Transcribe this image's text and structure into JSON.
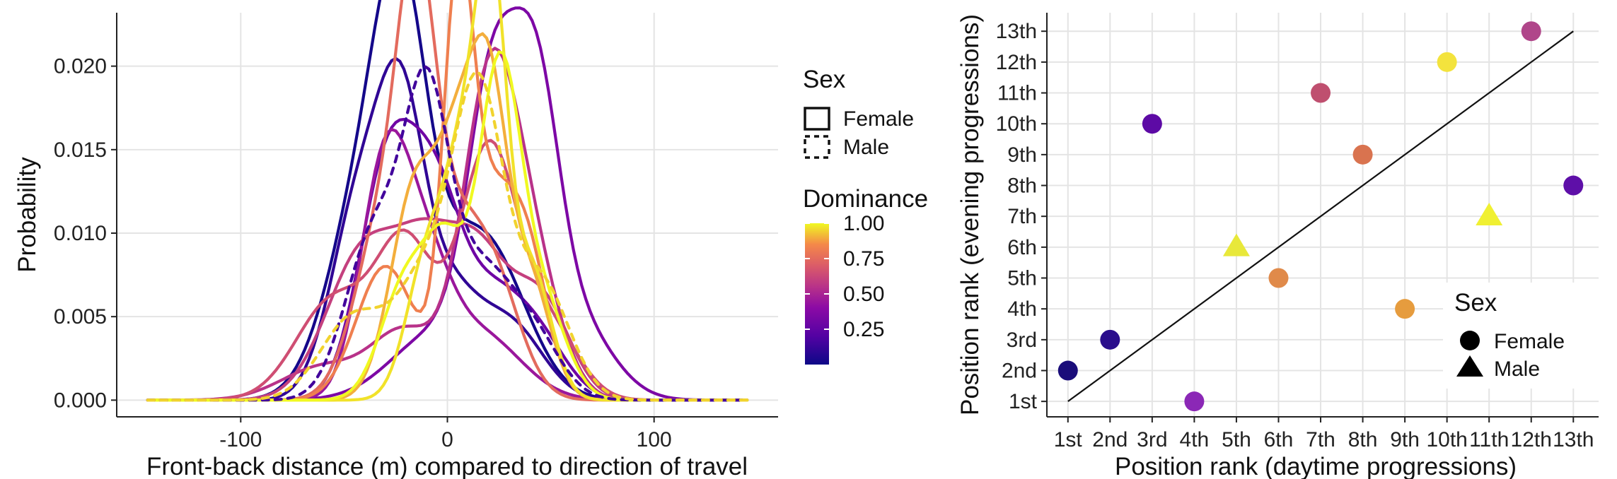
{
  "chart_data": [
    {
      "type": "line",
      "subtype": "density",
      "xlabel": "Front-back distance (m) compared to direction of travel",
      "ylabel": "Probability",
      "xlim": [
        -160,
        160
      ],
      "ylim": [
        -0.001,
        0.0232
      ],
      "x_ticks": [
        -100,
        0,
        100
      ],
      "x_tick_labels": [
        "-100",
        "0",
        "100"
      ],
      "y_ticks": [
        0,
        0.005,
        0.01,
        0.015,
        0.02
      ],
      "y_tick_labels": [
        "0.000",
        "0.005",
        "0.010",
        "0.015",
        "0.020"
      ],
      "grid": true,
      "legend_position": "right",
      "legend": {
        "sex_title": "Sex",
        "sex_entries": [
          "Female",
          "Male"
        ],
        "dominance_title": "Dominance",
        "dominance_ticks": [
          0.25,
          0.5,
          0.75,
          1.0
        ],
        "dominance_labels": [
          "0.25",
          "0.50",
          "0.75",
          "1.00"
        ]
      },
      "series": [
        {
          "dominance": 0.02,
          "sex": "Female",
          "peaks": [
            [
              -38,
              0.0133,
              18
            ],
            [
              -22,
              0.015,
              12
            ],
            [
              5,
              0.0066,
              20
            ],
            [
              25,
              0.005,
              18
            ]
          ]
        },
        {
          "dominance": 0.1,
          "sex": "Female",
          "peaks": [
            [
              -42,
              0.012,
              14
            ],
            [
              -22,
              0.014,
              11
            ],
            [
              0,
              0.006,
              14
            ],
            [
              30,
              0.0045,
              16
            ]
          ]
        },
        {
          "dominance": 0.3,
          "sex": "Female",
          "peaks": [
            [
              -28,
              0.0146,
              14
            ],
            [
              -5,
              0.009,
              12
            ],
            [
              20,
              0.006,
              16
            ],
            [
              45,
              0.003,
              14
            ]
          ]
        },
        {
          "dominance": 0.35,
          "sex": "Female",
          "peaks": [
            [
              -5,
              0.004,
              22
            ],
            [
              22,
              0.017,
              12
            ],
            [
              43,
              0.0148,
              11
            ],
            [
              60,
              0.005,
              18
            ]
          ]
        },
        {
          "dominance": 0.45,
          "sex": "Female",
          "peaks": [
            [
              -30,
              0.014,
              12
            ],
            [
              -10,
              0.006,
              12
            ],
            [
              15,
              0.004,
              20
            ]
          ]
        },
        {
          "dominance": 0.55,
          "sex": "Female",
          "peaks": [
            [
              -60,
              0.002,
              20
            ],
            [
              -20,
              0.004,
              16
            ],
            [
              20,
              0.0176,
              13
            ],
            [
              40,
              0.008,
              14
            ]
          ]
        },
        {
          "dominance": 0.6,
          "sex": "Female",
          "peaks": [
            [
              -40,
              0.009,
              18
            ],
            [
              -10,
              0.007,
              14
            ],
            [
              15,
              0.008,
              14
            ],
            [
              45,
              0.006,
              14
            ]
          ]
        },
        {
          "dominance": 0.65,
          "sex": "Female",
          "peaks": [
            [
              -55,
              0.006,
              18
            ],
            [
              -20,
              0.009,
              14
            ],
            [
              20,
              0.015,
              14
            ],
            [
              50,
              0.004,
              14
            ]
          ]
        },
        {
          "dominance": 0.75,
          "sex": "Female",
          "peaks": [
            [
              -30,
              0.011,
              14
            ],
            [
              -15,
              0.018,
              9
            ],
            [
              0,
              0.007,
              12
            ],
            [
              20,
              0.008,
              14
            ]
          ]
        },
        {
          "dominance": 0.82,
          "sex": "Female",
          "peaks": [
            [
              -30,
              0.008,
              14
            ],
            [
              5,
              0.02,
              7
            ],
            [
              20,
              0.012,
              14
            ],
            [
              40,
              0.006,
              10
            ]
          ]
        },
        {
          "dominance": 0.9,
          "sex": "Female",
          "peaks": [
            [
              -15,
              0.013,
              12
            ],
            [
              5,
              0.011,
              9
            ],
            [
              20,
              0.0175,
              9
            ],
            [
              40,
              0.007,
              10
            ]
          ]
        },
        {
          "dominance": 0.97,
          "sex": "Female",
          "peaks": [
            [
              -10,
              0.008,
              10
            ],
            [
              10,
              0.015,
              10
            ],
            [
              22,
              0.0185,
              7
            ],
            [
              40,
              0.008,
              10
            ]
          ]
        },
        {
          "dominance": 1.0,
          "sex": "Female",
          "peaks": [
            [
              -20,
              0.007,
              12
            ],
            [
              0,
              0.008,
              10
            ],
            [
              25,
              0.019,
              10
            ],
            [
              45,
              0.006,
              12
            ]
          ]
        },
        {
          "dominance": 0.15,
          "sex": "Male",
          "peaks": [
            [
              -35,
              0.01,
              14
            ],
            [
              -10,
              0.0165,
              11
            ],
            [
              15,
              0.007,
              14
            ],
            [
              40,
              0.004,
              14
            ]
          ]
        },
        {
          "dominance": 0.95,
          "sex": "Male",
          "peaks": [
            [
              -45,
              0.005,
              16
            ],
            [
              -10,
              0.007,
              14
            ],
            [
              15,
              0.0175,
              12
            ],
            [
              45,
              0.007,
              14
            ]
          ]
        }
      ]
    },
    {
      "type": "scatter",
      "xlabel": "Position rank (daytime progressions)",
      "ylabel": "Position rank  (evening progressions)",
      "x_tick_labels": [
        "1st",
        "2nd",
        "3rd",
        "4th",
        "5th",
        "6th",
        "7th",
        "8th",
        "9th",
        "10th",
        "11th",
        "12th",
        "13th"
      ],
      "y_tick_labels": [
        "1st",
        "2nd",
        "3rd",
        "4th",
        "5th",
        "6th",
        "7th",
        "8th",
        "9th",
        "10th",
        "11th",
        "12th",
        "13th"
      ],
      "xlim": [
        0.5,
        13.6
      ],
      "ylim": [
        0.5,
        13.6
      ],
      "grid": true,
      "reference_line": {
        "from": [
          1,
          1
        ],
        "to": [
          13,
          13
        ]
      },
      "legend": {
        "title": "Sex",
        "entries": [
          "Female",
          "Male"
        ],
        "position": "bottom-right"
      },
      "points": [
        {
          "x": 1,
          "y": 2,
          "sex": "Female",
          "color": "#1a0d7a"
        },
        {
          "x": 2,
          "y": 3,
          "sex": "Female",
          "color": "#2a0e8c"
        },
        {
          "x": 3,
          "y": 10,
          "sex": "Female",
          "color": "#5d0aa5"
        },
        {
          "x": 4,
          "y": 1,
          "sex": "Female",
          "color": "#8b28b6"
        },
        {
          "x": 5,
          "y": 6,
          "sex": "Male",
          "color": "#e8e83a"
        },
        {
          "x": 6,
          "y": 5,
          "sex": "Female",
          "color": "#e08a4a"
        },
        {
          "x": 7,
          "y": 11,
          "sex": "Female",
          "color": "#bf4f6f"
        },
        {
          "x": 8,
          "y": 9,
          "sex": "Female",
          "color": "#d9734f"
        },
        {
          "x": 9,
          "y": 4,
          "sex": "Female",
          "color": "#e69c3e"
        },
        {
          "x": 10,
          "y": 12,
          "sex": "Female",
          "color": "#f3e33d"
        },
        {
          "x": 11,
          "y": 7,
          "sex": "Male",
          "color": "#f0f032"
        },
        {
          "x": 12,
          "y": 13,
          "sex": "Female",
          "color": "#b0468a"
        },
        {
          "x": 13,
          "y": 8,
          "sex": "Female",
          "color": "#5e0fa8"
        }
      ]
    }
  ]
}
